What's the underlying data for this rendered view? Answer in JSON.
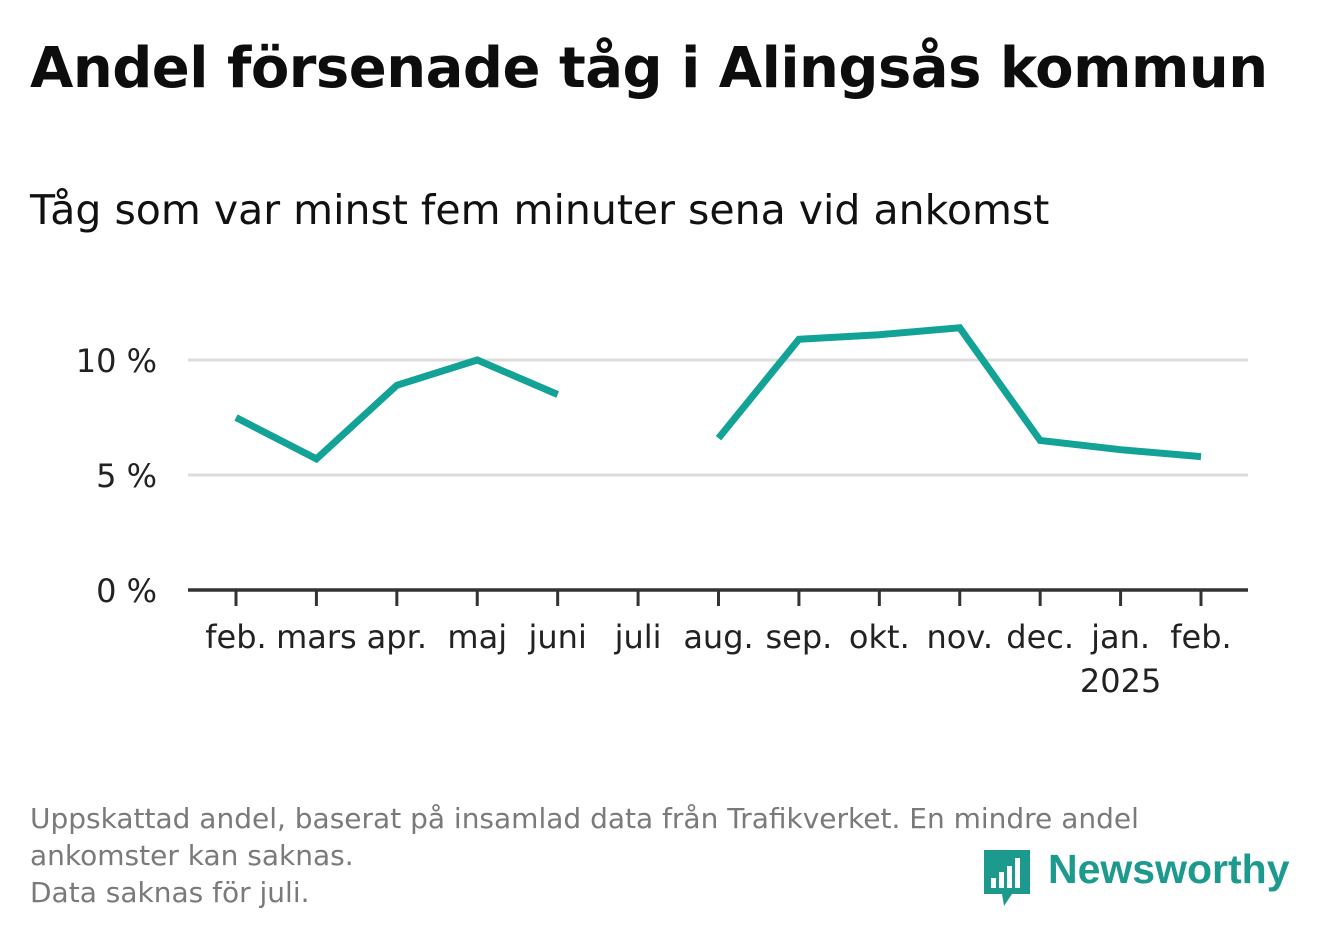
{
  "title": "Andel försenade tåg i Alingsås kommun",
  "subtitle": "Tåg som var minst fem minuter sena vid ankomst",
  "footnote": {
    "line1": "Uppskattad andel, baserat på insamlad data från Trafikverket. En mindre andel",
    "line2": "ankomster kan saknas.",
    "line3": "Data saknas för juli."
  },
  "brand": {
    "name": "Newsworthy",
    "icon": "newsworthy-logo-icon",
    "color": "#1d9a8e"
  },
  "chart_data": {
    "type": "line",
    "title": "Andel försenade tåg i Alingsås kommun",
    "subtitle": "Tåg som var minst fem minuter sena vid ankomst",
    "xlabel": "",
    "ylabel": "",
    "ylim": [
      0,
      12
    ],
    "yticks": [
      0,
      5,
      10
    ],
    "ytick_labels": [
      "0 %",
      "5 %",
      "10 %"
    ],
    "grid": true,
    "categories": [
      "feb.",
      "mars",
      "apr.",
      "maj",
      "juni",
      "juli",
      "aug.",
      "sep.",
      "okt.",
      "nov.",
      "dec.",
      "jan.",
      "feb."
    ],
    "year_label": {
      "category_index": 11,
      "text": "2025"
    },
    "series": [
      {
        "color": "#12a396",
        "values": [
          7.5,
          5.7,
          8.9,
          10.0,
          8.5,
          null,
          6.6,
          10.9,
          11.1,
          11.4,
          6.5,
          6.1,
          5.8
        ]
      }
    ]
  }
}
